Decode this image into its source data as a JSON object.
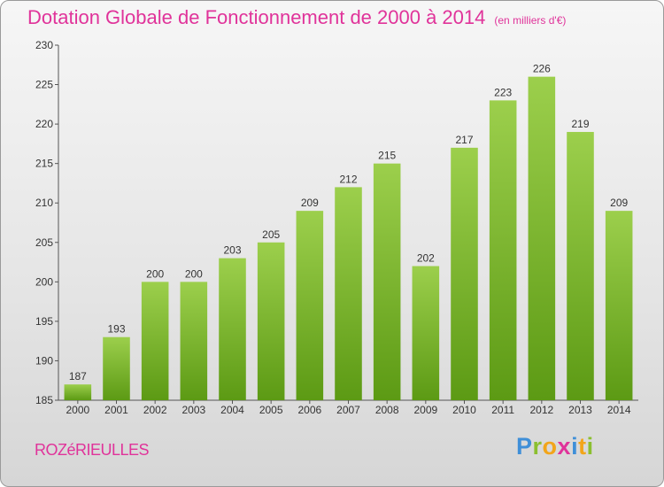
{
  "header": {
    "title": "Dotation Globale de Fonctionnement de 2000 à 2014",
    "subtitle": "(en milliers d'€)"
  },
  "footer": {
    "commune": "ROZéRIEULLES",
    "logo_letters": [
      "P",
      "r",
      "o",
      "x",
      "i",
      "t",
      "i"
    ]
  },
  "colors": {
    "title": "#e0339a",
    "bar_top": "#9ccf4c",
    "bar_bottom": "#5c9a14"
  },
  "chart_data": {
    "type": "bar",
    "title": "Dotation Globale de Fonctionnement de 2000 à 2014",
    "xlabel": "",
    "ylabel": "",
    "categories": [
      "2000",
      "2001",
      "2002",
      "2003",
      "2004",
      "2005",
      "2006",
      "2007",
      "2008",
      "2009",
      "2010",
      "2011",
      "2012",
      "2013",
      "2014"
    ],
    "values": [
      187,
      193,
      200,
      200,
      203,
      205,
      209,
      212,
      215,
      202,
      217,
      223,
      226,
      219,
      209
    ],
    "ylim": [
      185,
      230
    ],
    "yticks": [
      185,
      190,
      195,
      200,
      205,
      210,
      215,
      220,
      225,
      230
    ],
    "grid": false,
    "legend": "none"
  }
}
